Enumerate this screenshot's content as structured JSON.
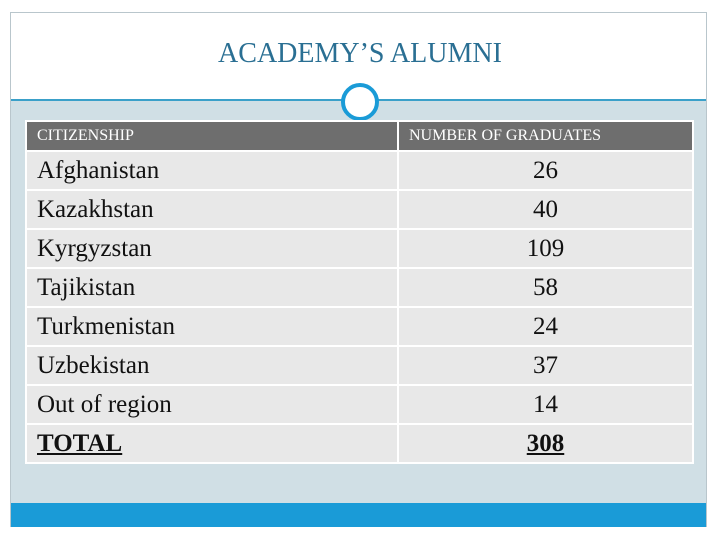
{
  "header": {
    "title": "ACADEMY’S ALUMNI"
  },
  "table": {
    "columns": [
      "CITIZENSHIP",
      "NUMBER OF GRADUATES"
    ],
    "rows": [
      [
        "Afghanistan",
        26
      ],
      [
        "Kazakhstan",
        40
      ],
      [
        "Kyrgyzstan",
        109
      ],
      [
        "Tajikistan",
        58
      ],
      [
        "Turkmenistan",
        24
      ],
      [
        "Uzbekistan",
        37
      ],
      [
        "Out of region",
        14
      ]
    ],
    "total": [
      "TOTAL",
      308
    ]
  }
}
